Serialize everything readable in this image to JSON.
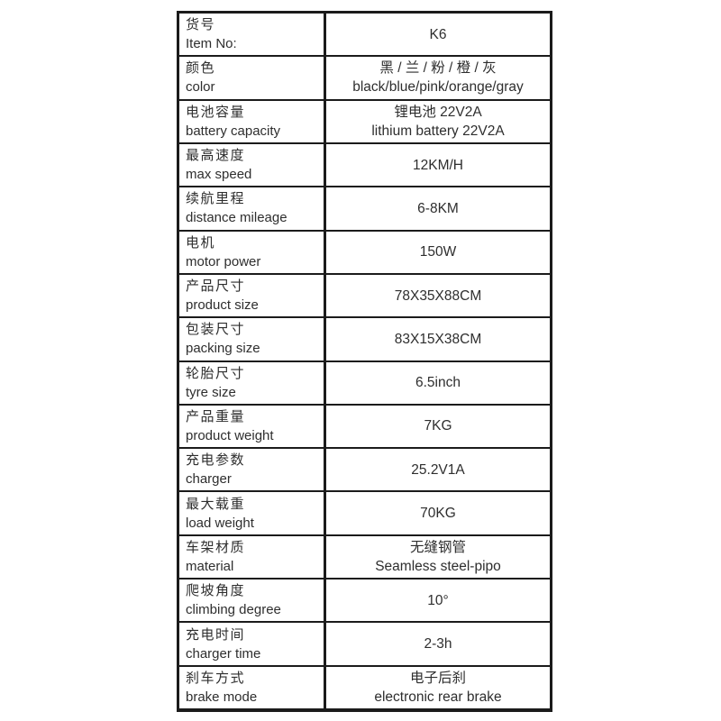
{
  "page": {
    "background": "#ffffff",
    "border_color": "#1b1b1b",
    "text_color": "#2e2e2e"
  },
  "spec_table": {
    "rows": [
      {
        "label_zh": "货号",
        "label_en": "Item No:",
        "values": [
          "K6"
        ]
      },
      {
        "label_zh": "颜色",
        "label_en": "color",
        "values": [
          "黑 / 兰 / 粉 / 橙 / 灰",
          "black/blue/pink/orange/gray"
        ]
      },
      {
        "label_zh": "电池容量",
        "label_en": "battery capacity",
        "values": [
          "锂电池 22V2A",
          "lithium battery 22V2A"
        ]
      },
      {
        "label_zh": "最高速度",
        "label_en": "max speed",
        "values": [
          "12KM/H"
        ]
      },
      {
        "label_zh": "续航里程",
        "label_en": "distance mileage",
        "values": [
          "6-8KM"
        ]
      },
      {
        "label_zh": "电机",
        "label_en": "motor power",
        "values": [
          "150W"
        ]
      },
      {
        "label_zh": "产品尺寸",
        "label_en": "product size",
        "values": [
          "78X35X88CM"
        ]
      },
      {
        "label_zh": "包装尺寸",
        "label_en": "packing size",
        "values": [
          "83X15X38CM"
        ]
      },
      {
        "label_zh": "轮胎尺寸",
        "label_en": "tyre size",
        "values": [
          "6.5inch"
        ]
      },
      {
        "label_zh": "产品重量",
        "label_en": "product weight",
        "values": [
          "7KG"
        ]
      },
      {
        "label_zh": "充电参数",
        "label_en": "charger",
        "values": [
          "25.2V1A"
        ]
      },
      {
        "label_zh": "最大载重",
        "label_en": "load weight",
        "values": [
          "70KG"
        ]
      },
      {
        "label_zh": "车架材质",
        "label_en": "material",
        "values": [
          "无缝钢管",
          "Seamless steel-pipo"
        ]
      },
      {
        "label_zh": "爬坡角度",
        "label_en": "climbing degree",
        "values": [
          "10°"
        ]
      },
      {
        "label_zh": "充电时间",
        "label_en": "charger time",
        "values": [
          "2-3h"
        ]
      },
      {
        "label_zh": "刹车方式",
        "label_en": "brake mode",
        "values": [
          "电子后刹",
          "electronic rear brake"
        ]
      }
    ]
  }
}
